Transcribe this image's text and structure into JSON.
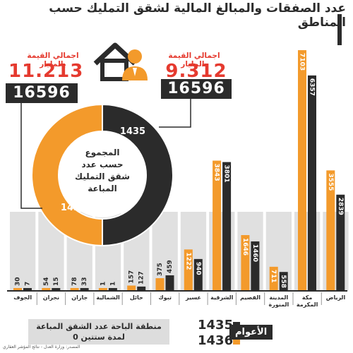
{
  "title": "عدد الصفقات والمبالغ المالية لشقق التمليك حسب المناطق",
  "stats": {
    "left": {
      "label": "اجمالي القيمة بالمليار",
      "value": "11.213",
      "count": "16596"
    },
    "right": {
      "label": "اجمالي القيمة بالمليار",
      "value": "9.312",
      "count": "16596"
    }
  },
  "donut": {
    "center_text": [
      "المجموع",
      "حسب عدد",
      "شقق التمليك",
      "المباعة"
    ],
    "label_1435": "1435",
    "label_1436": "1436"
  },
  "legend": {
    "title": "الأعوام",
    "items": [
      {
        "label": "1435",
        "color": "#2b2b2b"
      },
      {
        "label": "1436",
        "color": "#f39a2b"
      }
    ]
  },
  "footnote": "منطقة الباحة عدد الشقق المباعة لمدة ستتين 0",
  "source": "المصدر: وزارة العدل - نتائج المؤشر العقاري",
  "colors": {
    "year_1435": "#2b2b2b",
    "year_1436": "#f39a2b",
    "accent": "#e53a2f",
    "column_bg": "#e0e0e0"
  },
  "chart_data": {
    "type": "bar",
    "categories": [
      "الجوف",
      "نجران",
      "جازان",
      "الشمالية",
      "حائل",
      "تبوك",
      "عسير",
      "الشرقية",
      "القصيم",
      "المدينة المنورة",
      "مكة المكرمة",
      "الرياض"
    ],
    "series": [
      {
        "name": "1436",
        "values": [
          30,
          54,
          78,
          1,
          157,
          375,
          1222,
          3843,
          1646,
          711,
          7103,
          3555
        ]
      },
      {
        "name": "1435",
        "values": [
          7,
          15,
          33,
          1,
          127,
          459,
          940,
          3801,
          1460,
          558,
          6357,
          2839
        ]
      }
    ],
    "ylim": [
      0,
      7500
    ]
  }
}
